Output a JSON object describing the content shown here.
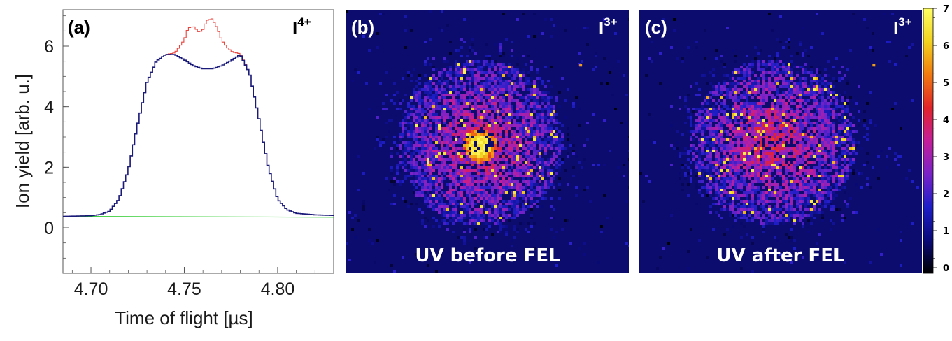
{
  "chart_data": [
    {
      "panel": "(a)",
      "type": "line",
      "ion_label": {
        "element": "I",
        "charge": "4+"
      },
      "xlabel": "Time of flight [µs]",
      "ylabel": "Ion yield [arb. u.]",
      "xlim": [
        4.685,
        4.83
      ],
      "ylim": [
        -1.5,
        7.2
      ],
      "xticks": [
        "4.70",
        "4.75",
        "4.80"
      ],
      "yticks": [
        "0",
        "2",
        "4",
        "6"
      ],
      "grid": false,
      "series": [
        {
          "color": "#e8423c",
          "x": [
            4.685,
            4.7,
            4.705,
            4.71,
            4.715,
            4.72,
            4.725,
            4.73,
            4.735,
            4.74,
            4.745,
            4.75,
            4.752,
            4.755,
            4.758,
            4.76,
            4.762,
            4.765,
            4.768,
            4.77,
            4.773,
            4.776,
            4.78,
            4.785,
            4.79,
            4.795,
            4.8,
            4.805,
            4.81,
            4.82,
            4.83
          ],
          "values": [
            0.38,
            0.4,
            0.44,
            0.55,
            0.95,
            1.9,
            3.4,
            4.8,
            5.5,
            5.72,
            5.78,
            6.2,
            6.6,
            6.65,
            6.45,
            6.55,
            6.85,
            6.9,
            6.55,
            6.2,
            5.95,
            5.8,
            5.75,
            5.1,
            3.6,
            2.0,
            0.95,
            0.6,
            0.48,
            0.43,
            0.41
          ]
        },
        {
          "color": "#1a1a7a",
          "x": [
            4.685,
            4.7,
            4.705,
            4.71,
            4.715,
            4.72,
            4.725,
            4.73,
            4.735,
            4.74,
            4.745,
            4.75,
            4.755,
            4.76,
            4.765,
            4.77,
            4.775,
            4.78,
            4.785,
            4.79,
            4.795,
            4.8,
            4.805,
            4.81,
            4.82,
            4.83
          ],
          "values": [
            0.38,
            0.4,
            0.44,
            0.55,
            0.95,
            1.9,
            3.4,
            4.8,
            5.5,
            5.72,
            5.72,
            5.55,
            5.35,
            5.25,
            5.25,
            5.35,
            5.52,
            5.72,
            5.1,
            3.6,
            2.0,
            0.95,
            0.6,
            0.48,
            0.43,
            0.41
          ]
        },
        {
          "color": "#22c922",
          "x": [
            4.685,
            4.83
          ],
          "values": [
            0.38,
            0.35
          ]
        }
      ]
    },
    {
      "panel": "(b)",
      "type": "heatmap",
      "ion_label": {
        "element": "I",
        "charge": "3+"
      },
      "caption": "UV before FEL",
      "center_hotspot": true,
      "intensity_range": [
        0,
        7
      ]
    },
    {
      "panel": "(c)",
      "type": "heatmap",
      "ion_label": {
        "element": "I",
        "charge": "3+"
      },
      "caption": "UV after FEL",
      "center_hotspot": false,
      "intensity_range": [
        0,
        7
      ]
    }
  ],
  "colorbar": {
    "ticks": [
      "0",
      "1",
      "2",
      "3",
      "4",
      "5",
      "6",
      "7"
    ],
    "stops": [
      "#000000",
      "#0a0a7a",
      "#1e1ec8",
      "#7a22c8",
      "#c41e9a",
      "#e2232a",
      "#f27a10",
      "#f2d21e",
      "#ffff66"
    ]
  },
  "colors": {
    "image_background": "#0c0c6e"
  }
}
